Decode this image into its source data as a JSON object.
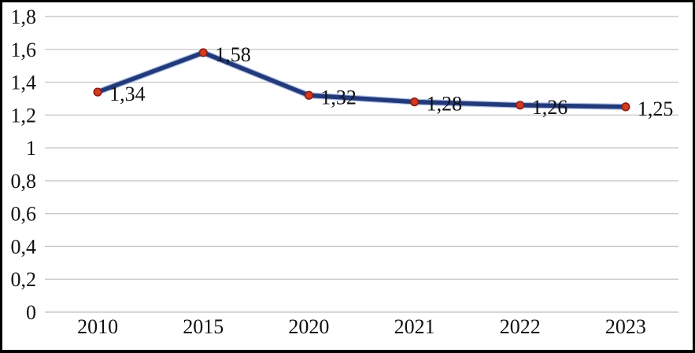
{
  "figure": {
    "background": "#FFFFFF",
    "border_color": "#000000"
  },
  "chart_data": {
    "type": "line",
    "title": "",
    "xlabel": "",
    "ylabel": "",
    "categories": [
      "2010",
      "2015",
      "2020",
      "2021",
      "2022",
      "2023"
    ],
    "series": [
      {
        "name": "value",
        "values": [
          1.34,
          1.58,
          1.32,
          1.28,
          1.26,
          1.25
        ],
        "point_labels": [
          "1,34",
          "1,58",
          "1,32",
          "1,28",
          "1,26",
          "1,25"
        ]
      }
    ],
    "ylim": [
      0,
      1.8
    ],
    "y_tick_step": 0.2,
    "y_tick_labels": [
      "0",
      "0,2",
      "0,4",
      "0,6",
      "0,8",
      "1",
      "1,2",
      "1,4",
      "1,6",
      "1,8"
    ],
    "decimal_separator": ",",
    "grid": "horizontal",
    "legend": "none",
    "marker_shape": "circle",
    "colors": {
      "line": "#22397A",
      "line_halo": "#4E74C5",
      "marker_fill": "#D23A22",
      "marker_stroke": "#8C1D12",
      "gridline": "#C8C8C8",
      "label_text": "#111111"
    }
  }
}
